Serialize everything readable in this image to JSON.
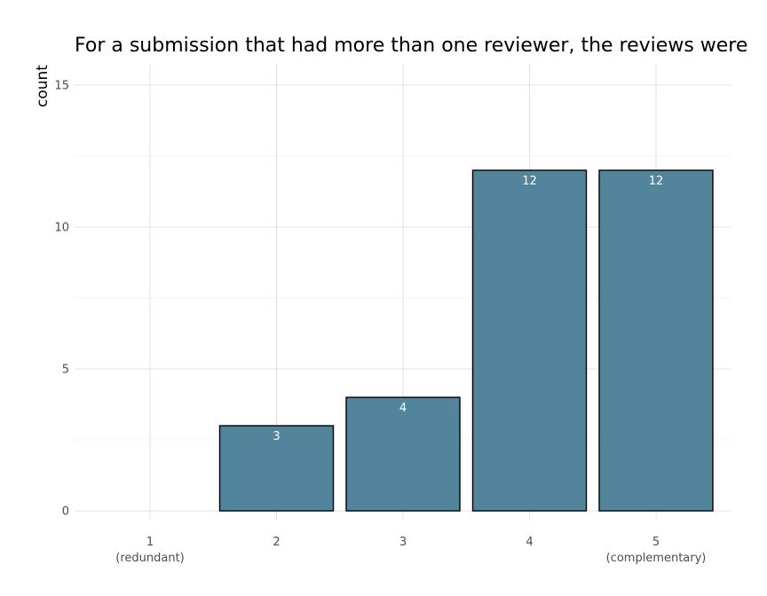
{
  "chart_data": {
    "type": "bar",
    "title": "For a submission that had more than one reviewer, the reviews were",
    "xlabel": "",
    "ylabel": "count",
    "categories": [
      "1",
      "2",
      "3",
      "4",
      "5"
    ],
    "category_sublabels": [
      "(redundant)",
      "",
      "",
      "",
      "(complementary)"
    ],
    "values": [
      0,
      3,
      4,
      12,
      12
    ],
    "data_labels": [
      "",
      "3",
      "4",
      "12",
      "12"
    ],
    "yticks": [
      0,
      5,
      10,
      15
    ],
    "ylim": [
      0,
      15.6
    ],
    "grid": true,
    "bar_color": "#52849b",
    "bar_edge_color": "#000000"
  }
}
